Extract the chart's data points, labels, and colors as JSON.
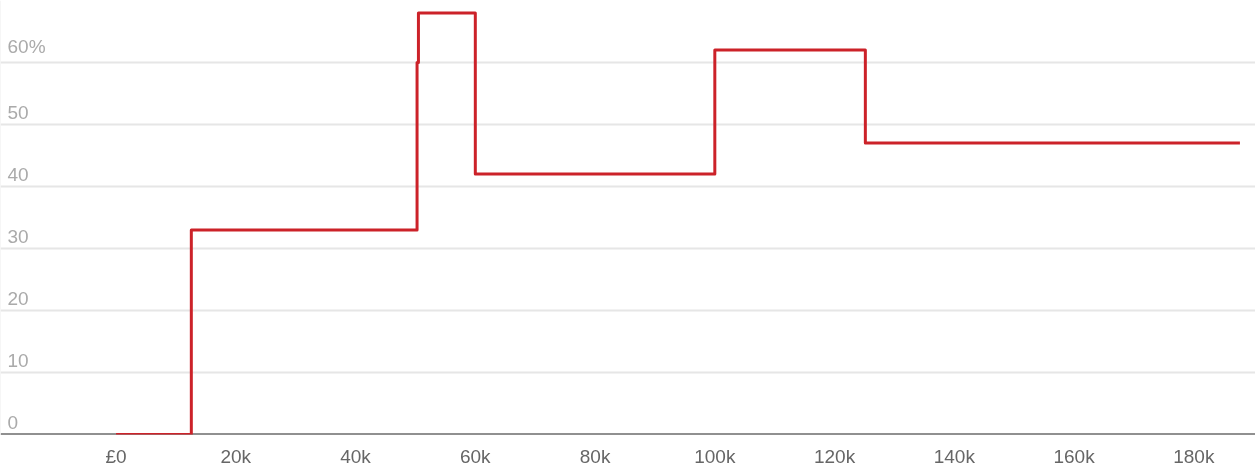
{
  "chart_data": {
    "type": "step",
    "x": [
      0,
      12570,
      50270,
      50500,
      60000,
      100000,
      125140,
      187700
    ],
    "series": [
      {
        "color": "#cc2229",
        "values": [
          0,
          33,
          60,
          68,
          42,
          62,
          47,
          47
        ]
      }
    ],
    "xlim": [
      -19300,
      190300
    ],
    "ylim": [
      0,
      70
    ],
    "xticks": [
      {
        "value": 0,
        "label": "£0"
      },
      {
        "value": 20000,
        "label": "20k"
      },
      {
        "value": 40000,
        "label": "40k"
      },
      {
        "value": 60000,
        "label": "60k"
      },
      {
        "value": 80000,
        "label": "80k"
      },
      {
        "value": 100000,
        "label": "100k"
      },
      {
        "value": 120000,
        "label": "120k"
      },
      {
        "value": 140000,
        "label": "140k"
      },
      {
        "value": 160000,
        "label": "160k"
      },
      {
        "value": 180000,
        "label": "180k"
      }
    ],
    "yticks": [
      0,
      10,
      20,
      30,
      40,
      50,
      {
        "value": 60,
        "label": "60%"
      }
    ],
    "grid": "y"
  }
}
